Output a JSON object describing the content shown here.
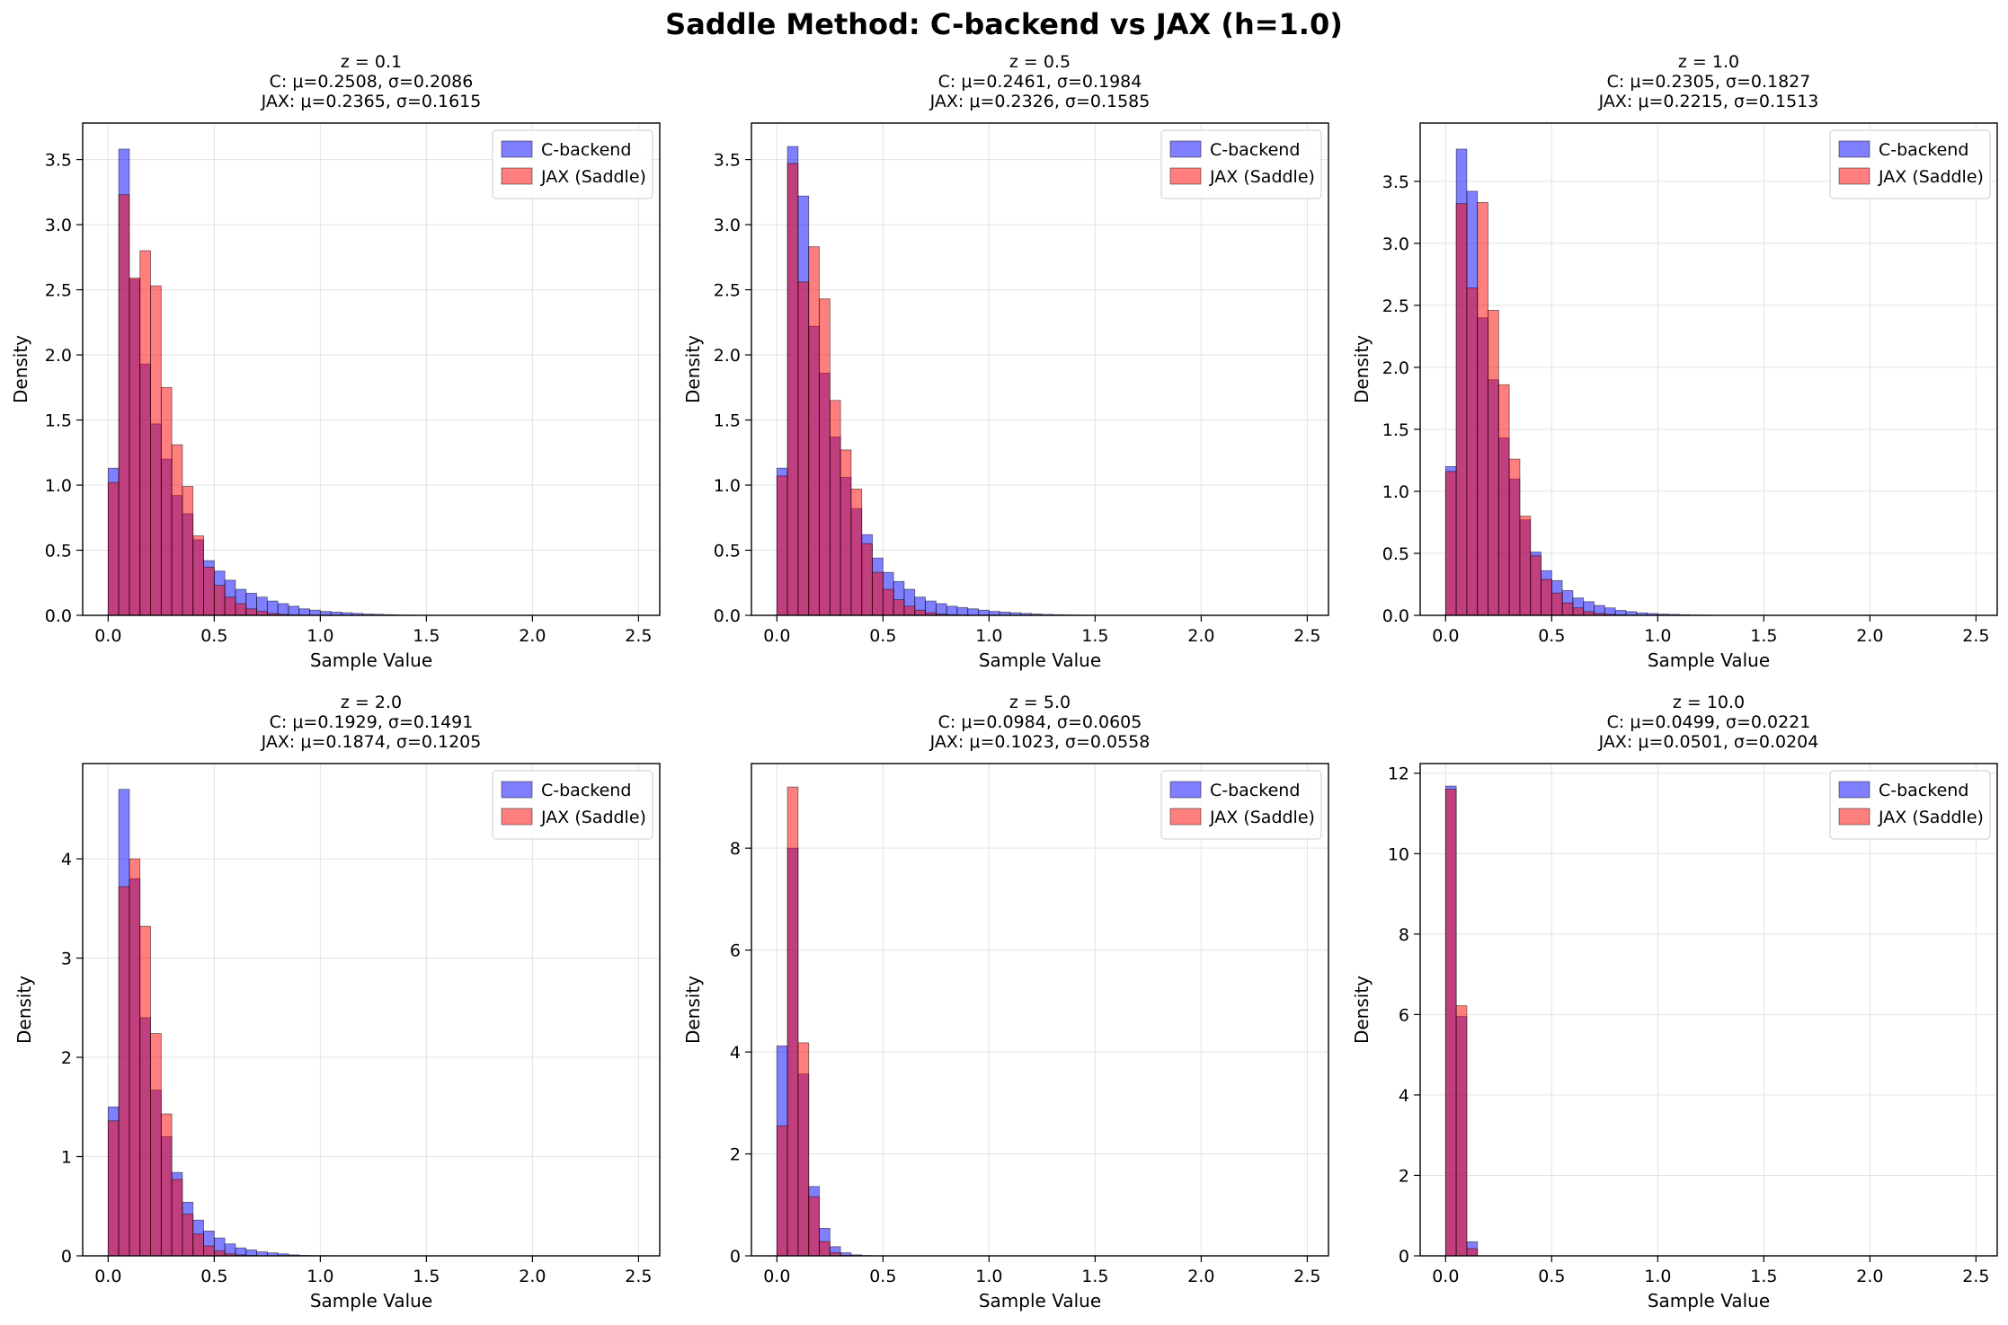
{
  "figure": {
    "title": "Saddle Method: C-backend vs JAX (h=1.0)"
  },
  "colors": {
    "c_backend": "#0000ff",
    "jax": "#ff0000",
    "overlap": "#b03060",
    "grid": "#e3e3e3"
  },
  "chart_data": [
    {
      "type": "histogram",
      "title_lines": [
        "z = 0.1",
        "C: μ=0.2508, σ=0.2086",
        "JAX: μ=0.2365, σ=0.1615"
      ],
      "xlabel": "Sample Value",
      "ylabel": "Density",
      "xlim": [
        -0.12,
        2.6
      ],
      "ylim": [
        0,
        3.78
      ],
      "xticks": [
        0.0,
        0.5,
        1.0,
        1.5,
        2.0,
        2.5
      ],
      "xtick_labels": [
        "0.0",
        "0.5",
        "1.0",
        "1.5",
        "2.0",
        "2.5"
      ],
      "yticks": [
        0.0,
        0.5,
        1.0,
        1.5,
        2.0,
        2.5,
        3.0,
        3.5
      ],
      "ytick_labels": [
        "0.0",
        "0.5",
        "1.0",
        "1.5",
        "2.0",
        "2.5",
        "3.0",
        "3.5"
      ],
      "grid": true,
      "legend_position": "top-right",
      "bin_width": 0.05,
      "bin_start": 0.0,
      "series": [
        {
          "name": "C-backend",
          "values": [
            1.13,
            3.58,
            2.58,
            1.93,
            1.47,
            1.2,
            0.92,
            0.78,
            0.58,
            0.42,
            0.34,
            0.27,
            0.2,
            0.17,
            0.14,
            0.11,
            0.09,
            0.07,
            0.05,
            0.04,
            0.03,
            0.025,
            0.02,
            0.015,
            0.01,
            0.008,
            0.005,
            0.003,
            0.002,
            0.001
          ]
        },
        {
          "name": "JAX (Saddle)",
          "values": [
            1.02,
            3.23,
            2.59,
            2.8,
            2.53,
            1.75,
            1.31,
            0.99,
            0.61,
            0.37,
            0.23,
            0.14,
            0.09,
            0.05,
            0.03,
            0.015,
            0.008,
            0.004,
            0.002,
            0.001
          ]
        }
      ]
    },
    {
      "type": "histogram",
      "title_lines": [
        "z = 0.5",
        "C: μ=0.2461, σ=0.1984",
        "JAX: μ=0.2326, σ=0.1585"
      ],
      "xlabel": "Sample Value",
      "ylabel": "Density",
      "xlim": [
        -0.12,
        2.6
      ],
      "ylim": [
        0,
        3.78
      ],
      "xticks": [
        0.0,
        0.5,
        1.0,
        1.5,
        2.0,
        2.5
      ],
      "xtick_labels": [
        "0.0",
        "0.5",
        "1.0",
        "1.5",
        "2.0",
        "2.5"
      ],
      "yticks": [
        0.0,
        0.5,
        1.0,
        1.5,
        2.0,
        2.5,
        3.0,
        3.5
      ],
      "ytick_labels": [
        "0.0",
        "0.5",
        "1.0",
        "1.5",
        "2.0",
        "2.5",
        "3.0",
        "3.5"
      ],
      "grid": true,
      "legend_position": "top-right",
      "bin_width": 0.05,
      "bin_start": 0.0,
      "series": [
        {
          "name": "C-backend",
          "values": [
            1.13,
            3.6,
            3.22,
            2.22,
            1.86,
            1.37,
            1.06,
            0.82,
            0.62,
            0.44,
            0.33,
            0.26,
            0.2,
            0.14,
            0.11,
            0.09,
            0.07,
            0.06,
            0.05,
            0.04,
            0.03,
            0.025,
            0.02,
            0.015,
            0.01,
            0.007,
            0.005,
            0.003,
            0.002,
            0.001
          ]
        },
        {
          "name": "JAX (Saddle)",
          "values": [
            1.07,
            3.47,
            2.56,
            2.83,
            2.43,
            1.65,
            1.27,
            0.97,
            0.55,
            0.33,
            0.2,
            0.12,
            0.07,
            0.04,
            0.02,
            0.01,
            0.005,
            0.002
          ]
        }
      ]
    },
    {
      "type": "histogram",
      "title_lines": [
        "z = 1.0",
        "C: μ=0.2305, σ=0.1827",
        "JAX: μ=0.2215, σ=0.1513"
      ],
      "xlabel": "Sample Value",
      "ylabel": "Density",
      "xlim": [
        -0.12,
        2.6
      ],
      "ylim": [
        0,
        3.97
      ],
      "xticks": [
        0.0,
        0.5,
        1.0,
        1.5,
        2.0,
        2.5
      ],
      "xtick_labels": [
        "0.0",
        "0.5",
        "1.0",
        "1.5",
        "2.0",
        "2.5"
      ],
      "yticks": [
        0.0,
        0.5,
        1.0,
        1.5,
        2.0,
        2.5,
        3.0,
        3.5
      ],
      "ytick_labels": [
        "0.0",
        "0.5",
        "1.0",
        "1.5",
        "2.0",
        "2.5",
        "3.0",
        "3.5"
      ],
      "grid": true,
      "legend_position": "top-right",
      "bin_width": 0.05,
      "bin_start": 0.0,
      "series": [
        {
          "name": "C-backend",
          "values": [
            1.2,
            3.76,
            3.42,
            2.4,
            1.9,
            1.43,
            1.1,
            0.77,
            0.51,
            0.36,
            0.28,
            0.2,
            0.14,
            0.11,
            0.08,
            0.06,
            0.04,
            0.03,
            0.02,
            0.015,
            0.01,
            0.008,
            0.005,
            0.003,
            0.002
          ]
        },
        {
          "name": "JAX (Saddle)",
          "values": [
            1.16,
            3.32,
            2.64,
            3.33,
            2.46,
            1.86,
            1.26,
            0.8,
            0.48,
            0.29,
            0.18,
            0.1,
            0.06,
            0.03,
            0.015,
            0.008,
            0.003
          ]
        }
      ]
    },
    {
      "type": "histogram",
      "title_lines": [
        "z = 2.0",
        "C: μ=0.1929, σ=0.1491",
        "JAX: μ=0.1874, σ=0.1205"
      ],
      "xlabel": "Sample Value",
      "ylabel": "Density",
      "xlim": [
        -0.12,
        2.6
      ],
      "ylim": [
        0,
        4.96
      ],
      "xticks": [
        0.0,
        0.5,
        1.0,
        1.5,
        2.0,
        2.5
      ],
      "xtick_labels": [
        "0.0",
        "0.5",
        "1.0",
        "1.5",
        "2.0",
        "2.5"
      ],
      "yticks": [
        0,
        1,
        2,
        3,
        4
      ],
      "ytick_labels": [
        "0",
        "1",
        "2",
        "3",
        "4"
      ],
      "grid": true,
      "legend_position": "top-right",
      "bin_width": 0.05,
      "bin_start": 0.0,
      "series": [
        {
          "name": "C-backend",
          "values": [
            1.5,
            4.7,
            3.8,
            2.4,
            1.67,
            1.2,
            0.84,
            0.54,
            0.36,
            0.25,
            0.18,
            0.12,
            0.08,
            0.06,
            0.04,
            0.03,
            0.02,
            0.01,
            0.005,
            0.003,
            0.002
          ]
        },
        {
          "name": "JAX (Saddle)",
          "values": [
            1.36,
            3.72,
            4.0,
            3.32,
            2.24,
            1.43,
            0.77,
            0.42,
            0.22,
            0.1,
            0.05,
            0.02,
            0.01,
            0.004
          ]
        }
      ]
    },
    {
      "type": "histogram",
      "title_lines": [
        "z = 5.0",
        "C: μ=0.0984, σ=0.0605",
        "JAX: μ=0.1023, σ=0.0558"
      ],
      "xlabel": "Sample Value",
      "ylabel": "Density",
      "xlim": [
        -0.12,
        2.6
      ],
      "ylim": [
        0,
        9.66
      ],
      "xticks": [
        0.0,
        0.5,
        1.0,
        1.5,
        2.0,
        2.5
      ],
      "xtick_labels": [
        "0.0",
        "0.5",
        "1.0",
        "1.5",
        "2.0",
        "2.5"
      ],
      "yticks": [
        0,
        2,
        4,
        6,
        8
      ],
      "ytick_labels": [
        "0",
        "2",
        "4",
        "6",
        "8"
      ],
      "grid": true,
      "legend_position": "top-right",
      "bin_width": 0.05,
      "bin_start": 0.0,
      "series": [
        {
          "name": "C-backend",
          "values": [
            4.12,
            8.0,
            3.57,
            1.36,
            0.54,
            0.18,
            0.06,
            0.02,
            0.007,
            0.002
          ]
        },
        {
          "name": "JAX (Saddle)",
          "values": [
            2.55,
            9.2,
            4.18,
            1.16,
            0.28,
            0.06,
            0.01,
            0.002
          ]
        }
      ]
    },
    {
      "type": "histogram",
      "title_lines": [
        "z = 10.0",
        "C: μ=0.0499, σ=0.0221",
        "JAX: μ=0.0501, σ=0.0204"
      ],
      "xlabel": "Sample Value",
      "ylabel": "Density",
      "xlim": [
        -0.12,
        2.6
      ],
      "ylim": [
        0,
        12.24
      ],
      "xticks": [
        0.0,
        0.5,
        1.0,
        1.5,
        2.0,
        2.5
      ],
      "xtick_labels": [
        "0.0",
        "0.5",
        "1.0",
        "1.5",
        "2.0",
        "2.5"
      ],
      "yticks": [
        0,
        2,
        4,
        6,
        8,
        10,
        12
      ],
      "ytick_labels": [
        "0",
        "2",
        "4",
        "6",
        "8",
        "10",
        "12"
      ],
      "grid": true,
      "legend_position": "top-right",
      "bin_width": 0.05,
      "bin_start": 0.0,
      "series": [
        {
          "name": "C-backend",
          "values": [
            11.68,
            5.95,
            0.35
          ]
        },
        {
          "name": "JAX (Saddle)",
          "values": [
            11.6,
            6.22,
            0.18
          ]
        }
      ]
    }
  ]
}
